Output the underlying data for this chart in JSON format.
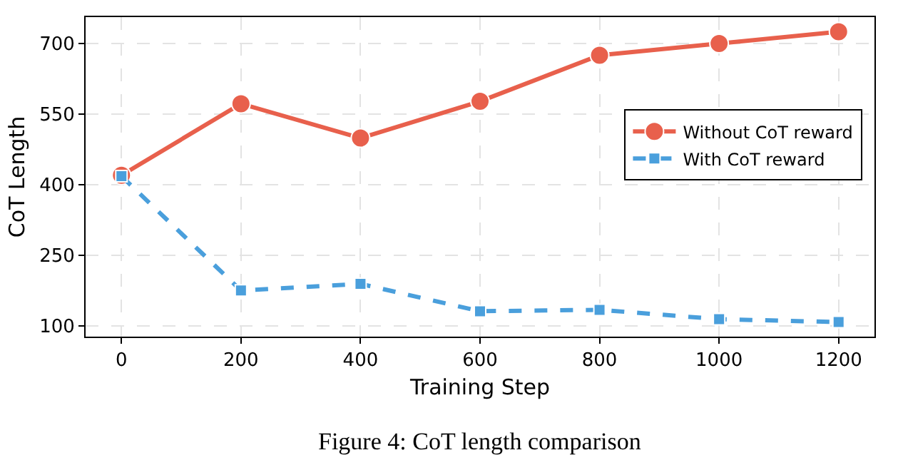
{
  "chart_data": {
    "type": "line",
    "xlabel": "Training Step",
    "ylabel": "CoT Length",
    "x": [
      0,
      200,
      400,
      600,
      800,
      1000,
      1200
    ],
    "series": [
      {
        "name": "Without CoT reward",
        "color": "#e8604c",
        "marker": "circle",
        "line_style": "solid",
        "values": [
          420,
          572,
          499,
          577,
          675,
          700,
          725
        ]
      },
      {
        "name": "With CoT reward",
        "color": "#4a9fdc",
        "marker": "square",
        "line_style": "dashed",
        "values": [
          418,
          175,
          189,
          131,
          134,
          114,
          108
        ]
      }
    ],
    "xlim": [
      -60,
      1260
    ],
    "xticks": [
      0,
      200,
      400,
      600,
      800,
      1000,
      1200
    ],
    "ylim": [
      77,
      756
    ],
    "yticks": [
      100,
      250,
      400,
      550,
      700
    ],
    "grid": true,
    "legend": "right",
    "annotations": [
      "Figure 4: CoT length comparison"
    ]
  }
}
